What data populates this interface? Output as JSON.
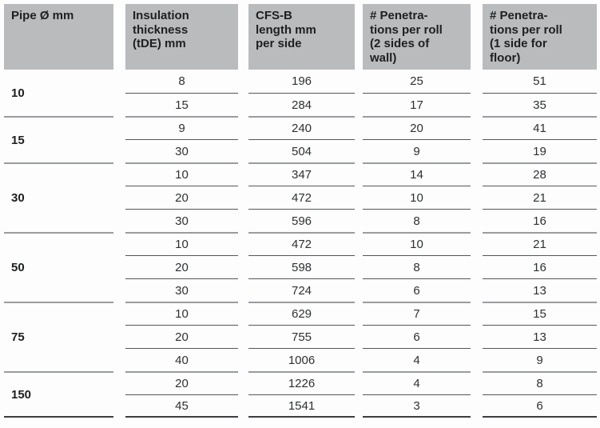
{
  "table": {
    "headers": [
      "Pipe Ø mm",
      "Insulation\nthickness\n(tDE) mm",
      "CFS-B\nlength mm\nper side",
      "# Penetra-\ntions per roll\n(2 sides of\nwall)",
      "# Penetra-\ntions per roll\n(1 side for\nfloor)"
    ],
    "groups": [
      {
        "pipe": "10",
        "rows": [
          [
            "8",
            "196",
            "25",
            "51"
          ],
          [
            "15",
            "284",
            "17",
            "35"
          ]
        ]
      },
      {
        "pipe": "15",
        "rows": [
          [
            "9",
            "240",
            "20",
            "41"
          ],
          [
            "30",
            "504",
            "9",
            "19"
          ]
        ]
      },
      {
        "pipe": "30",
        "rows": [
          [
            "10",
            "347",
            "14",
            "28"
          ],
          [
            "20",
            "472",
            "10",
            "21"
          ],
          [
            "30",
            "596",
            "8",
            "16"
          ]
        ]
      },
      {
        "pipe": "50",
        "rows": [
          [
            "10",
            "472",
            "10",
            "21"
          ],
          [
            "20",
            "598",
            "8",
            "16"
          ],
          [
            "30",
            "724",
            "6",
            "13"
          ]
        ]
      },
      {
        "pipe": "75",
        "rows": [
          [
            "10",
            "629",
            "7",
            "15"
          ],
          [
            "20",
            "755",
            "6",
            "13"
          ],
          [
            "40",
            "1006",
            "4",
            "9"
          ]
        ]
      },
      {
        "pipe": "150",
        "rows": [
          [
            "20",
            "1226",
            "4",
            "8"
          ],
          [
            "45",
            "1541",
            "3",
            "6"
          ]
        ]
      }
    ],
    "colors": {
      "header_bg": "#b9bbbd",
      "row_separator": "#55575a",
      "group_separator": "#9a9c9f",
      "bottom_rule": "#3d3e41"
    }
  }
}
